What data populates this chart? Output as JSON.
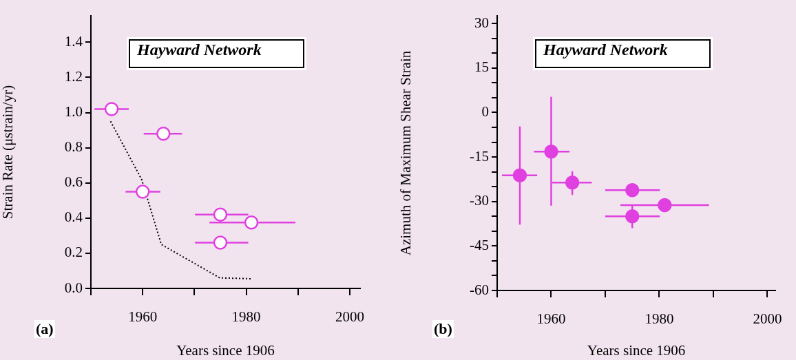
{
  "chart_data": [
    {
      "type": "scatter",
      "title": "Hayward Network",
      "xlabel": "Years since 1906",
      "ylabel": "Strain Rate (μstrain/yr)",
      "annotations": [
        "(a)"
      ],
      "xlim": [
        1950,
        2002
      ],
      "xticks": [
        {
          "value": 1950,
          "label": null
        },
        1960,
        {
          "value": 1970,
          "label": null
        },
        1980,
        {
          "value": 1990,
          "label": null
        },
        2000
      ],
      "ylim": [
        0,
        1.55
      ],
      "yticks": [
        {
          "value": 0,
          "label": "0.0"
        },
        0.2,
        0.4,
        0.6,
        0.8,
        {
          "value": 1,
          "label": "1.0"
        },
        1.2,
        1.4
      ],
      "grid": false,
      "legend": false,
      "series": [
        {
          "type": "line",
          "color": "#000000",
          "line_style": "dotted",
          "marker": "none",
          "x": [
            1953.8,
            1959.8,
            1963.6,
            1974.9,
            1980.9
          ],
          "values": [
            0.95,
            0.62,
            0.25,
            0.06,
            0.055
          ]
        },
        {
          "type": "scatter",
          "color": "#e040e0",
          "marker": "circle",
          "x": [
            1954,
            1964,
            1960,
            1975,
            1981,
            1975
          ],
          "values": [
            1.02,
            0.88,
            0.55,
            0.42,
            0.375,
            0.26
          ],
          "xerrors": [
            [
              1950.7,
              1957.3
            ],
            [
              1960.2,
              1967.6
            ],
            [
              1956.7,
              1963.4
            ],
            [
              1970.1,
              1980.4
            ],
            [
              1972.9,
              1989.5
            ],
            [
              1970.1,
              1980.4
            ]
          ]
        }
      ]
    },
    {
      "type": "scatter",
      "title": "Hayward Network",
      "xlabel": "Years since 1906",
      "ylabel": "Azimuth of Maximum Shear Strain",
      "annotations": [
        "(b)"
      ],
      "xlim": [
        1950,
        2001.5
      ],
      "xticks": [
        {
          "value": 1950,
          "label": null
        },
        1960,
        {
          "value": 1970,
          "label": null
        },
        1980,
        {
          "value": 1990,
          "label": null
        },
        2000
      ],
      "ylim": [
        -60,
        32.6
      ],
      "yticks": [
        -60,
        {
          "value": -55,
          "label": null
        },
        {
          "value": -50,
          "label": null
        },
        -45,
        {
          "value": -40,
          "label": null
        },
        {
          "value": -35,
          "label": null
        },
        -30,
        {
          "value": -25,
          "label": null
        },
        {
          "value": -20,
          "label": null
        },
        -15,
        {
          "value": -10,
          "label": null
        },
        {
          "value": -5,
          "label": null
        },
        0,
        {
          "value": 5,
          "label": null
        },
        {
          "value": 10,
          "label": null
        },
        15,
        {
          "value": 20,
          "label": null
        },
        {
          "value": 25,
          "label": null
        },
        30
      ],
      "grid": false,
      "legend": false,
      "series": [
        {
          "type": "scatter",
          "color": "#e040e0",
          "marker": "circle",
          "x": [
            1954.2,
            1960,
            1963.9,
            1975,
            1981,
            1975
          ],
          "values": [
            -21.2,
            -13.2,
            -23.6,
            -26.2,
            -31.2,
            -35
          ],
          "errors": [
            [
              -37.8,
              -4.7
            ],
            [
              -31.4,
              5.3
            ],
            [
              -27.8,
              -19.8
            ],
            null,
            null,
            [
              -39,
              -31.2
            ]
          ],
          "xerrors": [
            [
              1950.9,
              1957.4
            ],
            [
              1956.8,
              1963.4
            ],
            [
              1960.2,
              1967.5
            ],
            [
              1970,
              1980.1
            ],
            [
              1972.8,
              1989.2
            ],
            [
              1970,
              1980.1
            ]
          ]
        }
      ]
    }
  ]
}
